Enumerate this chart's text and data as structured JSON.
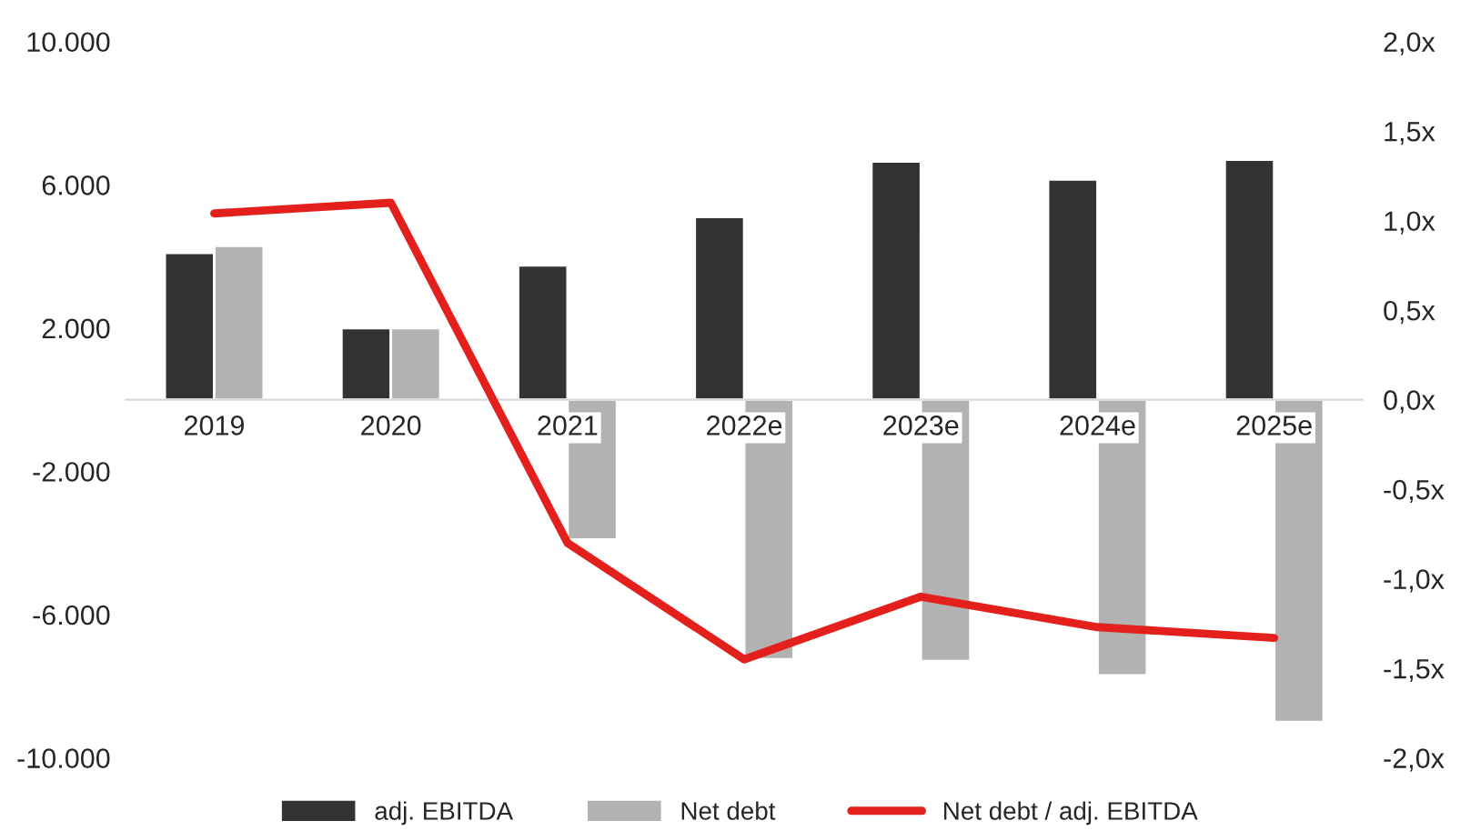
{
  "chart_data": {
    "type": "bar",
    "categories": [
      "2019",
      "2020",
      "2021",
      "2022e",
      "2023e",
      "2024e",
      "2025e"
    ],
    "series": [
      {
        "name": "adj. EBITDA",
        "color": "#333333",
        "values": [
          4100,
          2000,
          3750,
          5100,
          6650,
          6150,
          6700
        ]
      },
      {
        "name": "Net debt",
        "color": "#b2b2b2",
        "values": [
          4300,
          2000,
          -3900,
          -7250,
          -7300,
          -7700,
          -9000
        ]
      },
      {
        "name": "Net debt / adj. EBITDA",
        "type": "line",
        "axis": "y2",
        "color": "#e3201b",
        "values": [
          1.04,
          1.1,
          -0.8,
          -1.45,
          -1.1,
          -1.27,
          -1.33
        ]
      }
    ],
    "ylim": [
      -10000,
      10000
    ],
    "yticks": [
      {
        "value": 10000,
        "label": "10.000"
      },
      {
        "value": 6000,
        "label": "6.000"
      },
      {
        "value": 2000,
        "label": "2.000"
      },
      {
        "value": -2000,
        "label": "-2.000"
      },
      {
        "value": -6000,
        "label": "-6.000"
      },
      {
        "value": -10000,
        "label": "-10.000"
      }
    ],
    "y2lim": [
      -2.0,
      2.0
    ],
    "y2ticks": [
      {
        "value": 2.0,
        "label": "2,0x"
      },
      {
        "value": 1.5,
        "label": "1,5x"
      },
      {
        "value": 1.0,
        "label": "1,0x"
      },
      {
        "value": 0.5,
        "label": "0,5x"
      },
      {
        "value": 0.0,
        "label": "0,0x"
      },
      {
        "value": -0.5,
        "label": "-0,5x"
      },
      {
        "value": -1.0,
        "label": "-1,0x"
      },
      {
        "value": -1.5,
        "label": "-1,5x"
      },
      {
        "value": -2.0,
        "label": "-2,0x"
      }
    ],
    "grid": false,
    "legend": "bottom"
  }
}
